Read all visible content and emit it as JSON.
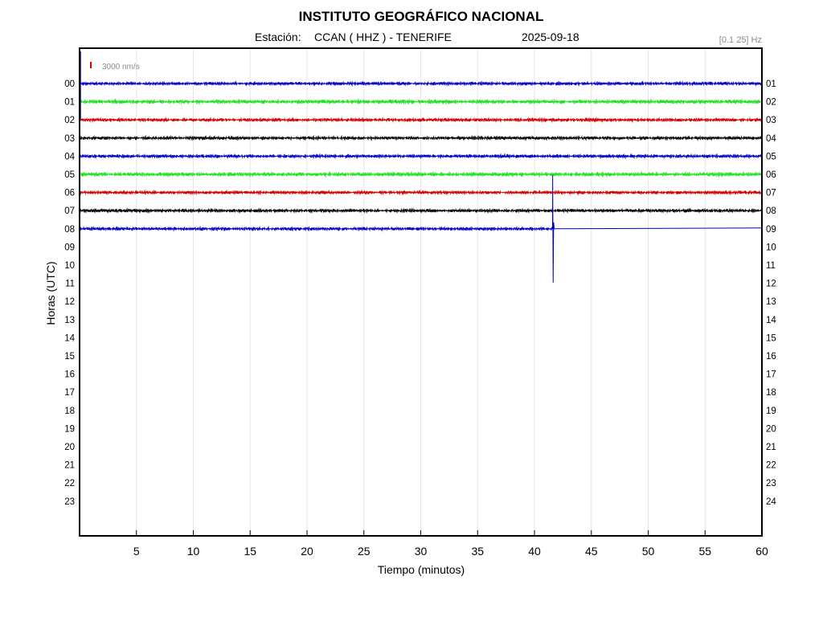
{
  "header": {
    "title": "INSTITUTO GEOGRÁFICO NACIONAL",
    "station_prefix": "Estación:",
    "station": "CCAN ( HHZ ) - TENERIFE",
    "date": "2025-09-18",
    "filter": "[0.1 25] Hz",
    "scale": "3000 nm/s",
    "scale_color": "#e00000"
  },
  "chart_data": {
    "type": "line",
    "title": "INSTITUTO GEOGRÁFICO NACIONAL",
    "xlabel": "Tiempo (minutos)",
    "ylabel": "Horas (UTC)",
    "xlim": [
      0,
      60
    ],
    "x_ticks": [
      5,
      10,
      15,
      20,
      25,
      30,
      35,
      40,
      45,
      50,
      55,
      60
    ],
    "y_left_labels": [
      "00",
      "01",
      "02",
      "03",
      "04",
      "05",
      "06",
      "07",
      "08",
      "09",
      "10",
      "11",
      "12",
      "13",
      "14",
      "15",
      "16",
      "17",
      "18",
      "19",
      "20",
      "21",
      "22",
      "23"
    ],
    "y_right_labels": [
      "01",
      "02",
      "03",
      "04",
      "05",
      "06",
      "07",
      "08",
      "09",
      "10",
      "11",
      "12",
      "13",
      "14",
      "15",
      "16",
      "17",
      "18",
      "19",
      "20",
      "21",
      "22",
      "23",
      "24"
    ],
    "grid": "vertical",
    "colors": [
      "#0000c8",
      "#22e022",
      "#d40000",
      "#000000"
    ],
    "series": [
      {
        "hour": 0,
        "color": "#0000c8",
        "x_end": 60
      },
      {
        "hour": 1,
        "color": "#22e022",
        "x_end": 60
      },
      {
        "hour": 2,
        "color": "#d40000",
        "x_end": 60
      },
      {
        "hour": 3,
        "color": "#000000",
        "x_end": 60
      },
      {
        "hour": 4,
        "color": "#0000c8",
        "x_end": 60
      },
      {
        "hour": 5,
        "color": "#22e022",
        "x_end": 60
      },
      {
        "hour": 6,
        "color": "#d40000",
        "x_end": 60
      },
      {
        "hour": 7,
        "color": "#000000",
        "x_end": 60
      },
      {
        "hour": 8,
        "color": "#0000c8",
        "x_end": 41.6,
        "spike_x": 41.6,
        "flat_after": true
      }
    ]
  }
}
